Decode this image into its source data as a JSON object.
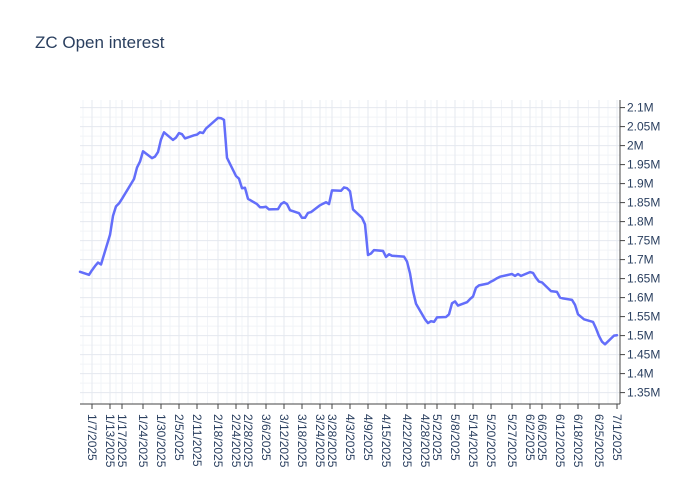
{
  "chart_data": {
    "type": "line",
    "title": "ZC Open interest",
    "xlabel": "",
    "ylabel": "",
    "grid": true,
    "y_axis_side": "right",
    "ylim": [
      1320000,
      2120000
    ],
    "xlim": [
      "2025-01-03",
      "2025-07-02"
    ],
    "y_ticks": [
      1350000,
      1400000,
      1450000,
      1500000,
      1550000,
      1600000,
      1650000,
      1700000,
      1750000,
      1800000,
      1850000,
      1900000,
      1950000,
      2000000,
      2050000,
      2100000
    ],
    "y_tick_labels": [
      "1.35M",
      "1.4M",
      "1.45M",
      "1.5M",
      "1.55M",
      "1.6M",
      "1.65M",
      "1.7M",
      "1.75M",
      "1.8M",
      "1.85M",
      "1.9M",
      "1.95M",
      "2M",
      "2.05M",
      "2.1M"
    ],
    "x_ticks": [
      "2025-01-07",
      "2025-01-13",
      "2025-01-17",
      "2025-01-24",
      "2025-01-30",
      "2025-02-05",
      "2025-02-11",
      "2025-02-18",
      "2025-02-24",
      "2025-02-28",
      "2025-03-06",
      "2025-03-12",
      "2025-03-18",
      "2025-03-24",
      "2025-03-28",
      "2025-04-03",
      "2025-04-09",
      "2025-04-15",
      "2025-04-22",
      "2025-04-28",
      "2025-05-02",
      "2025-05-08",
      "2025-05-14",
      "2025-05-20",
      "2025-05-27",
      "2025-06-02",
      "2025-06-06",
      "2025-06-12",
      "2025-06-18",
      "2025-06-25",
      "2025-07-01"
    ],
    "x_tick_labels": [
      "1/7/2025",
      "1/13/2025",
      "1/17/2025",
      "1/24/2025",
      "1/30/2025",
      "2/5/2025",
      "2/11/2025",
      "2/18/2025",
      "2/24/2025",
      "2/28/2025",
      "3/6/2025",
      "3/12/2025",
      "3/18/2025",
      "3/24/2025",
      "3/28/2025",
      "4/3/2025",
      "4/9/2025",
      "4/15/2025",
      "4/22/2025",
      "4/28/2025",
      "5/2/2025",
      "5/8/2025",
      "5/14/2025",
      "5/20/2025",
      "5/27/2025",
      "6/2/2025",
      "6/6/2025",
      "6/12/2025",
      "6/18/2025",
      "6/25/2025",
      "7/1/2025"
    ],
    "series": [
      {
        "color": "#636efa",
        "x": [
          "2025-01-03",
          "2025-01-06",
          "2025-01-07",
          "2025-01-08",
          "2025-01-09",
          "2025-01-10",
          "2025-01-13",
          "2025-01-14",
          "2025-01-15",
          "2025-01-16",
          "2025-01-17",
          "2025-01-21",
          "2025-01-22",
          "2025-01-23",
          "2025-01-24",
          "2025-01-27",
          "2025-01-28",
          "2025-01-29",
          "2025-01-30",
          "2025-01-31",
          "2025-02-03",
          "2025-02-04",
          "2025-02-05",
          "2025-02-06",
          "2025-02-07",
          "2025-02-10",
          "2025-02-11",
          "2025-02-12",
          "2025-02-13",
          "2025-02-14",
          "2025-02-18",
          "2025-02-19",
          "2025-02-20",
          "2025-02-21",
          "2025-02-24",
          "2025-02-25",
          "2025-02-26",
          "2025-02-27",
          "2025-02-28",
          "2025-03-03",
          "2025-03-04",
          "2025-03-05",
          "2025-03-06",
          "2025-03-07",
          "2025-03-10",
          "2025-03-11",
          "2025-03-12",
          "2025-03-13",
          "2025-03-14",
          "2025-03-17",
          "2025-03-18",
          "2025-03-19",
          "2025-03-20",
          "2025-03-21",
          "2025-03-24",
          "2025-03-25",
          "2025-03-26",
          "2025-03-27",
          "2025-03-28",
          "2025-03-31",
          "2025-04-01",
          "2025-04-02",
          "2025-04-03",
          "2025-04-04",
          "2025-04-07",
          "2025-04-08",
          "2025-04-09",
          "2025-04-10",
          "2025-04-11",
          "2025-04-14",
          "2025-04-15",
          "2025-04-16",
          "2025-04-17",
          "2025-04-21",
          "2025-04-22",
          "2025-04-23",
          "2025-04-24",
          "2025-04-25",
          "2025-04-28",
          "2025-04-29",
          "2025-04-30",
          "2025-05-01",
          "2025-05-02",
          "2025-05-05",
          "2025-05-06",
          "2025-05-07",
          "2025-05-08",
          "2025-05-09",
          "2025-05-12",
          "2025-05-13",
          "2025-05-14",
          "2025-05-15",
          "2025-05-16",
          "2025-05-19",
          "2025-05-20",
          "2025-05-21",
          "2025-05-22",
          "2025-05-23",
          "2025-05-27",
          "2025-05-28",
          "2025-05-29",
          "2025-05-30",
          "2025-06-02",
          "2025-06-03",
          "2025-06-04",
          "2025-06-05",
          "2025-06-06",
          "2025-06-09",
          "2025-06-10",
          "2025-06-11",
          "2025-06-12",
          "2025-06-13",
          "2025-06-16",
          "2025-06-17",
          "2025-06-18",
          "2025-06-20",
          "2025-06-23",
          "2025-06-24",
          "2025-06-25",
          "2025-06-26",
          "2025-06-27",
          "2025-06-30",
          "2025-07-01"
        ],
        "y": [
          1668000,
          1660000,
          1672000,
          1683000,
          1692000,
          1687000,
          1765000,
          1815000,
          1840000,
          1848000,
          1860000,
          1912000,
          1942000,
          1958000,
          1985000,
          1967000,
          1971000,
          1983000,
          2016000,
          2035000,
          2015000,
          2021000,
          2033000,
          2030000,
          2019000,
          2027000,
          2029000,
          2035000,
          2033000,
          2045000,
          2073000,
          2072000,
          2068000,
          1968000,
          1920000,
          1913000,
          1888000,
          1889000,
          1860000,
          1846000,
          1838000,
          1838000,
          1839000,
          1832000,
          1833000,
          1846000,
          1851000,
          1846000,
          1830000,
          1822000,
          1810000,
          1810000,
          1823000,
          1825000,
          1843000,
          1847000,
          1851000,
          1846000,
          1882000,
          1881000,
          1890000,
          1888000,
          1880000,
          1832000,
          1810000,
          1793000,
          1712000,
          1716000,
          1725000,
          1723000,
          1707000,
          1714000,
          1710000,
          1708000,
          1695000,
          1664000,
          1617000,
          1584000,
          1543000,
          1533000,
          1538000,
          1536000,
          1548000,
          1549000,
          1556000,
          1585000,
          1590000,
          1579000,
          1588000,
          1596000,
          1603000,
          1626000,
          1632000,
          1637000,
          1642000,
          1646000,
          1651000,
          1655000,
          1662000,
          1657000,
          1662000,
          1657000,
          1667000,
          1665000,
          1652000,
          1642000,
          1640000,
          1617000,
          1616000,
          1615000,
          1600000,
          1598000,
          1594000,
          1581000,
          1556000,
          1543000,
          1536000,
          1519000,
          1499000,
          1484000,
          1477000,
          1500000,
          1501000
        ]
      }
    ]
  }
}
